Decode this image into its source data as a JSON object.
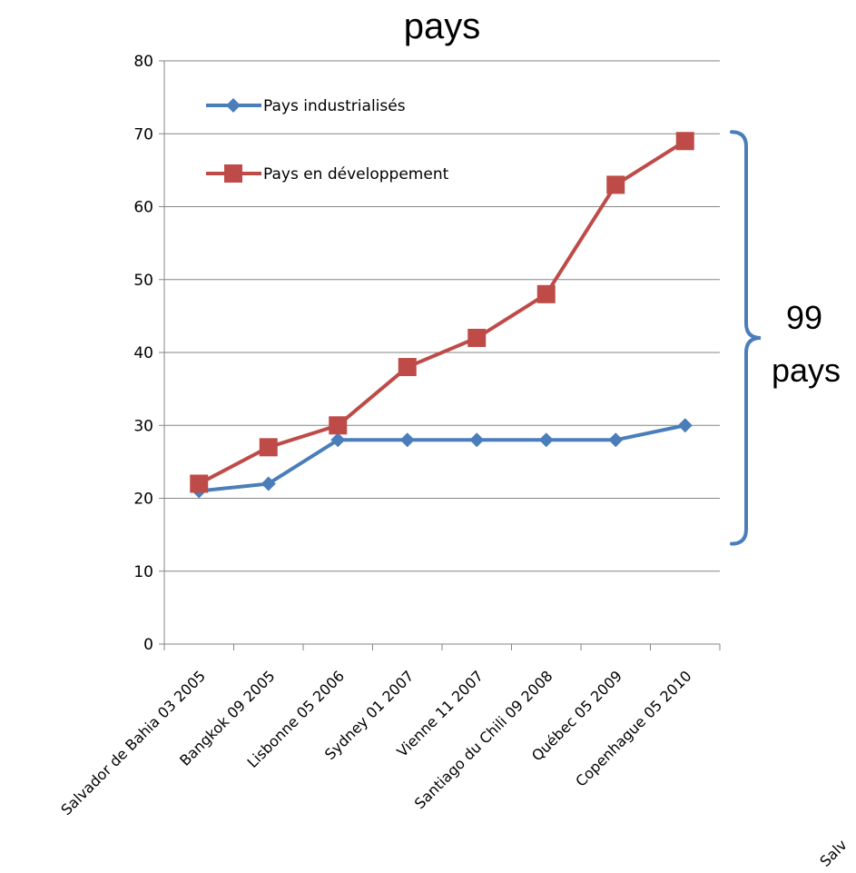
{
  "chart_data": {
    "type": "line",
    "title": "pays",
    "categories": [
      "Salvador de Bahia 03 2005",
      "Bangkok 09 2005",
      "Lisbonne 05 2006",
      "Sydney 01 2007",
      "Vienne 11 2007",
      "Santiago du Chili 09 2008",
      "Québec 05 2009",
      "Copenhague 05 2010"
    ],
    "series": [
      {
        "name": "Pays industrialisés",
        "values": [
          21,
          22,
          28,
          28,
          28,
          28,
          28,
          30
        ],
        "color": "#4a7ebb",
        "marker": "diamond"
      },
      {
        "name": "Pays en développement",
        "values": [
          22,
          27,
          30,
          38,
          42,
          48,
          63,
          69
        ],
        "color": "#be4b48",
        "marker": "square"
      }
    ],
    "ylim": [
      0,
      80
    ],
    "yticks": [
      "0",
      "10",
      "20",
      "30",
      "40",
      "50",
      "60",
      "70",
      "80"
    ],
    "grid": true,
    "legend_position": "top-left",
    "annotation": {
      "type": "brace",
      "line1": "99",
      "line2": "pays",
      "from_value": 14,
      "to_value": 70,
      "color": "#4a7ebb"
    },
    "clipped_label": "Salv"
  }
}
